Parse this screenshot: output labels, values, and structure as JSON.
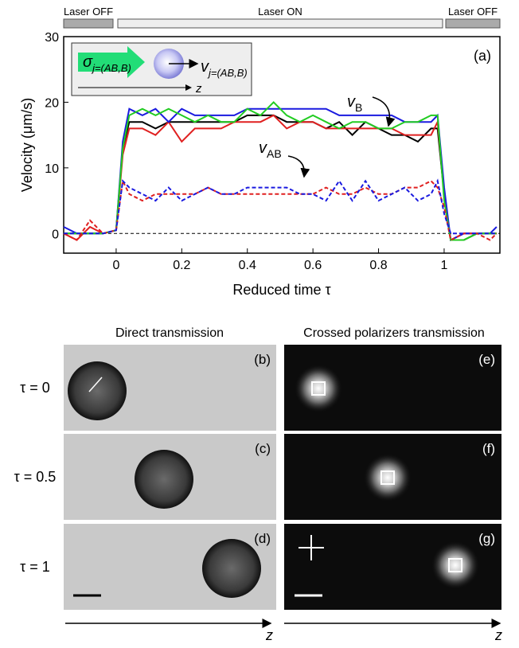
{
  "chart_data": {
    "type": "line",
    "xlabel": "Reduced time τ",
    "ylabel": "Velocity (μm/s)",
    "laser": [
      "Laser OFF",
      "Laser ON",
      "Laser OFF"
    ],
    "panel_label": "(a)",
    "curve_labels": [
      {
        "text": "v",
        "sub": "B"
      },
      {
        "text": "v",
        "sub": "AB"
      }
    ],
    "inset": {
      "sigma": "σ",
      "sigma_sub": "j=(AB,B)",
      "v": "v",
      "v_sub": "j=(AB,B)",
      "axis": "z"
    },
    "xlim": [
      -0.16,
      1.17
    ],
    "ylim": [
      -3,
      30
    ],
    "xticks": [
      0,
      0.2,
      0.4,
      0.6,
      0.8,
      1
    ],
    "yticks": [
      0,
      10,
      20,
      30
    ],
    "x": [
      -0.16,
      -0.12,
      -0.08,
      -0.04,
      0,
      0.02,
      0.04,
      0.08,
      0.12,
      0.16,
      0.2,
      0.24,
      0.28,
      0.32,
      0.36,
      0.4,
      0.44,
      0.48,
      0.52,
      0.56,
      0.6,
      0.64,
      0.68,
      0.72,
      0.76,
      0.8,
      0.84,
      0.88,
      0.92,
      0.96,
      0.98,
      1.0,
      1.02,
      1.06,
      1.1,
      1.14,
      1.16
    ],
    "series": [
      {
        "color": "#000000",
        "style": "solid",
        "values": [
          0,
          0,
          0,
          0,
          0.5,
          13,
          17,
          17,
          16,
          17,
          17,
          17,
          17,
          17,
          17,
          18,
          18,
          18,
          17,
          17,
          17,
          16,
          17,
          15,
          17,
          16,
          15,
          15,
          14,
          16,
          16,
          6,
          -1,
          -1,
          0,
          0,
          0
        ]
      },
      {
        "color": "#e02020",
        "style": "solid",
        "values": [
          0,
          -1,
          1,
          0,
          0.5,
          12,
          16,
          16,
          15,
          17,
          14,
          16,
          16,
          16,
          17,
          17,
          17,
          18,
          16,
          17,
          17,
          16,
          16,
          16,
          16,
          16,
          16,
          15,
          15,
          15,
          17,
          6,
          -1,
          0,
          0,
          0,
          0
        ]
      },
      {
        "color": "#1a1adf",
        "style": "solid",
        "values": [
          1,
          0,
          0,
          0,
          0.5,
          14,
          19,
          18,
          19,
          17,
          19,
          18,
          18,
          18,
          18,
          19,
          19,
          19,
          19,
          19,
          19,
          19,
          18,
          18,
          18,
          18,
          18,
          17,
          17,
          17,
          18,
          7,
          -1,
          0,
          0,
          0,
          1
        ]
      },
      {
        "color": "#22cc22",
        "style": "solid",
        "values": [
          0,
          0,
          0,
          0,
          0.5,
          13,
          18,
          19,
          18,
          19,
          18,
          17,
          18,
          17,
          17,
          19,
          18,
          20,
          18,
          17,
          18,
          17,
          16,
          17,
          17,
          16,
          16,
          17,
          17,
          18,
          18,
          5,
          -1,
          -1,
          0,
          0,
          0
        ]
      },
      {
        "color": "#e02020",
        "style": "dashed",
        "values": [
          0,
          -1,
          2,
          0,
          0.5,
          8,
          6,
          5,
          6,
          6,
          6,
          6,
          7,
          6,
          6,
          6,
          6,
          6,
          6,
          6,
          6,
          7,
          6,
          6,
          7,
          6,
          6,
          7,
          7,
          8,
          7,
          4,
          -1,
          0,
          0,
          -1,
          0
        ]
      },
      {
        "color": "#1a1adf",
        "style": "dashed",
        "values": [
          0,
          0,
          0,
          0,
          0.5,
          8,
          7,
          6,
          5,
          7,
          5,
          6,
          7,
          6,
          6,
          7,
          7,
          7,
          7,
          6,
          6,
          5,
          8,
          5,
          8,
          5,
          6,
          7,
          5,
          6,
          8,
          3,
          0,
          0,
          0,
          0,
          0
        ]
      }
    ]
  },
  "images": {
    "column_titles": [
      "Direct transmission",
      "Crossed polarizers transmission"
    ],
    "row_labels": [
      "τ = 0",
      "τ = 0.5",
      "τ = 1"
    ],
    "panel_labels": [
      [
        "(b)",
        "(c)",
        "(d)"
      ],
      [
        "(e)",
        "(f)",
        "(g)"
      ]
    ],
    "axis_labels": [
      "z",
      "z"
    ]
  }
}
